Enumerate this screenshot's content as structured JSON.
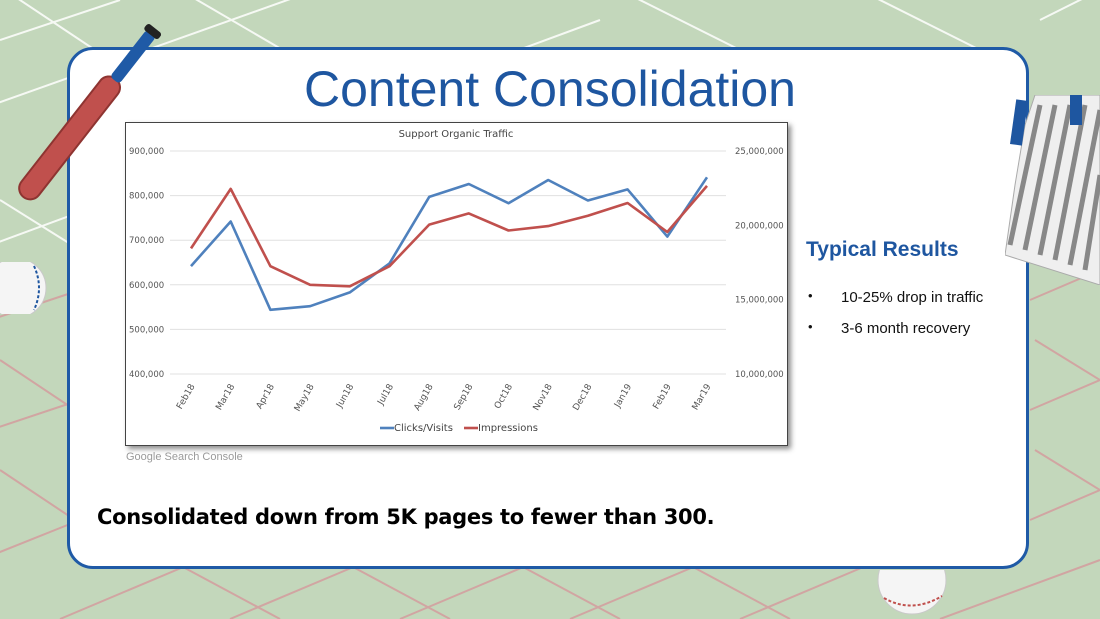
{
  "slide": {
    "title": "Content Consolidation",
    "source": "Google Search Console",
    "results_title": "Typical Results",
    "results": [
      "10-25% drop in traffic",
      "3-6 month recovery"
    ],
    "footer": "Consolidated down from 5K pages to fewer than 300."
  },
  "colors": {
    "background": "#c3d7bb",
    "accent": "#1e56a0",
    "clicks": "#4f81bd",
    "impressions": "#c0504d"
  },
  "chart_data": {
    "type": "line",
    "title": "Support Organic Traffic",
    "categories": [
      "Feb18",
      "Mar18",
      "Apr18",
      "May18",
      "Jun18",
      "Jul18",
      "Aug18",
      "Sep18",
      "Oct18",
      "Nov18",
      "Dec18",
      "Jan19",
      "Feb19",
      "Mar19"
    ],
    "series": [
      {
        "name": "Clicks/Visits",
        "axis": "left",
        "values": [
          642000,
          742000,
          544000,
          552000,
          583000,
          648000,
          797000,
          826000,
          783000,
          835000,
          789000,
          814000,
          708000,
          841000
        ]
      },
      {
        "name": "Impressions",
        "axis": "right",
        "values": [
          18450000,
          22450000,
          17250000,
          16000000,
          15900000,
          17250000,
          20050000,
          20800000,
          19650000,
          19950000,
          20650000,
          21500000,
          19550000,
          22650000
        ]
      }
    ],
    "y_left": {
      "min": 400000,
      "max": 900000,
      "ticks": [
        "900,000",
        "800,000",
        "700,000",
        "600,000",
        "500,000",
        "400,000"
      ]
    },
    "y_right": {
      "min": 10000000,
      "max": 25000000,
      "ticks": [
        "25,000,000",
        "20,000,000",
        "15,000,000",
        "10,000,000"
      ]
    },
    "grid": true,
    "legend": "bottom"
  }
}
